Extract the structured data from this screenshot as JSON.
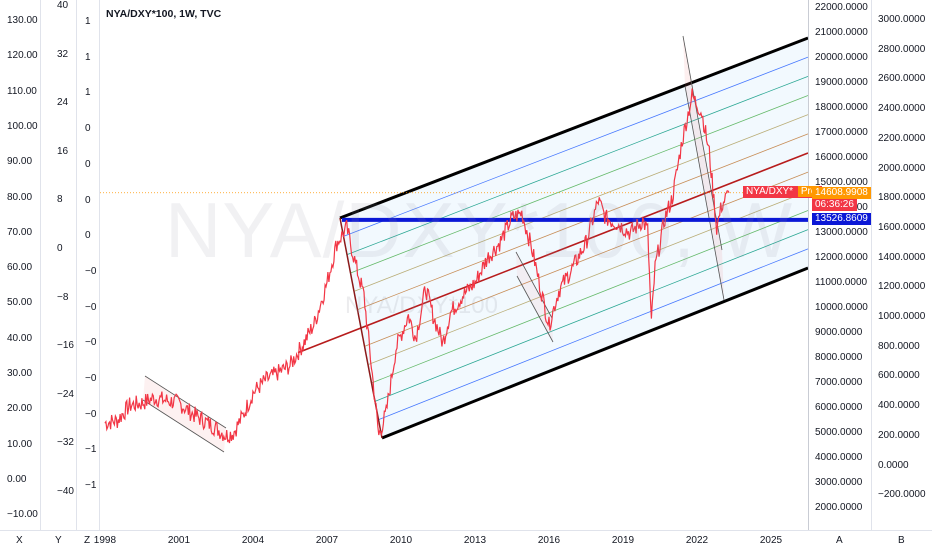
{
  "header": {
    "title": "NYA/DXY*100, 1W, TVC"
  },
  "watermark": {
    "big": "NYA/DXY*100, W",
    "small": "NYA/DXY*100"
  },
  "scales": {
    "col1": [
      "130.00",
      "120.00",
      "110.00",
      "100.00",
      "90.00",
      "80.00",
      "70.00",
      "60.00",
      "50.00",
      "40.00",
      "30.00",
      "20.00",
      "10.00",
      "0.00",
      "−10.00"
    ],
    "col2": [
      "40",
      "32",
      "24",
      "16",
      "8",
      "0",
      "−8",
      "−16",
      "−24",
      "−32",
      "−40"
    ],
    "col3": [
      "1",
      "1",
      "1",
      "0",
      "0",
      "0",
      "0",
      "−0",
      "−0",
      "−0",
      "−0",
      "−0",
      "−1",
      "−1"
    ],
    "main": [
      "22000.0000",
      "21000.0000",
      "20000.0000",
      "19000.0000",
      "18000.0000",
      "17000.0000",
      "16000.0000",
      "15000.0000",
      "14000.0000",
      "13000.0000",
      "12000.0000",
      "11000.0000",
      "10000.0000",
      "9000.0000",
      "8000.0000",
      "7000.0000",
      "6000.0000",
      "5000.0000",
      "4000.0000",
      "3000.0000",
      "2000.0000"
    ],
    "right": [
      "3000.0000",
      "2800.0000",
      "2600.0000",
      "2400.0000",
      "2200.0000",
      "2000.0000",
      "1800.0000",
      "1600.0000",
      "1400.0000",
      "1200.0000",
      "1000.0000",
      "800.0000",
      "600.0000",
      "400.0000",
      "200.0000",
      "0.0000",
      "−200.0000"
    ]
  },
  "price_tags": {
    "symbol": "NYA/DXY*",
    "pre": "Pre",
    "last": "14608.9908",
    "countdown": "06:36:26",
    "hline": "13526.8609"
  },
  "bottom": {
    "corners": [
      "X",
      "Y",
      "Z",
      "A",
      "B"
    ],
    "years": [
      "1998",
      "2001",
      "2004",
      "2007",
      "2010",
      "2013",
      "2016",
      "2019",
      "2022",
      "2025"
    ]
  },
  "colors": {
    "price": "#f23645",
    "channel": "#000000",
    "midline": "#b71c1c",
    "hline": "#0b18d6",
    "last_tag": "#ff9800",
    "countdown_tag": "#f23645",
    "hline_tag": "#0b18d6"
  },
  "chart_data": {
    "type": "line",
    "title": "NYA/DXY*100, 1W, TVC",
    "xlabel": "",
    "ylabel": "",
    "ylim": [
      1500,
      22500
    ],
    "xlim": [
      1997.8,
      2026.5
    ],
    "series": [
      {
        "x": [
          1998.0,
          1998.5,
          1999.0,
          1999.5,
          2000.0,
          2000.5,
          2001.0,
          2001.5,
          2002.0,
          2002.5,
          2002.9,
          2003.2,
          2003.6,
          2004.0,
          2004.5,
          2005.0,
          2005.5,
          2006.0,
          2006.5,
          2007.0,
          2007.4,
          2007.8,
          2008.2,
          2008.5,
          2008.8,
          2009.1,
          2009.4,
          2009.8,
          2010.3,
          2010.6,
          2011.0,
          2011.3,
          2011.7,
          2012.0,
          2012.5,
          2013.0,
          2013.5,
          2014.0,
          2014.5,
          2014.9,
          2015.3,
          2015.7,
          2016.0,
          2016.4,
          2016.9,
          2017.5,
          2018.0,
          2018.3,
          2018.9,
          2019.3,
          2019.8,
          2020.0,
          2020.15,
          2020.3,
          2020.7,
          2021.0,
          2021.4,
          2021.8,
          2022.2,
          2022.5,
          2022.8,
          2023.0,
          2023.3
        ],
        "values": [
          5400,
          5500,
          6100,
          6200,
          6400,
          6300,
          6200,
          5800,
          5500,
          5200,
          4900,
          5000,
          5700,
          6600,
          7100,
          7400,
          7700,
          8500,
          9400,
          11000,
          12600,
          13200,
          11600,
          10500,
          7700,
          4900,
          5800,
          8400,
          9700,
          8800,
          10800,
          9700,
          8600,
          9800,
          10500,
          11000,
          12000,
          12600,
          13600,
          13800,
          12400,
          10600,
          9300,
          10700,
          11500,
          12600,
          14300,
          13600,
          13300,
          13000,
          13500,
          13100,
          9400,
          11600,
          13600,
          14400,
          16700,
          18500,
          17800,
          16200,
          13200,
          14100,
          14608.99
        ]
      }
    ],
    "annotations": {
      "horizontal_level": 13526.8609,
      "last_price": 14608.9908,
      "channel": "parallel regression channel 2008–2026 with inner levels",
      "trend_channels": "short downtrend channels 2000–2003, 2014–2016, 2021–2023"
    },
    "grid": false,
    "legend": "none"
  }
}
